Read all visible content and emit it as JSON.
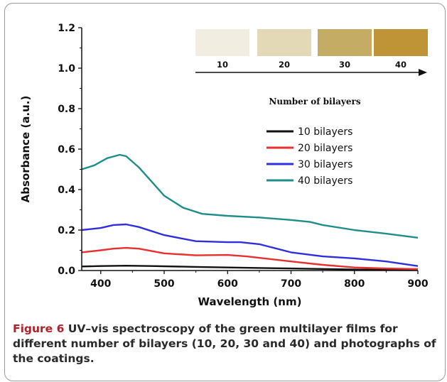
{
  "chart_data": {
    "type": "line",
    "xlabel": "Wavelength (nm)",
    "ylabel": "Absorbance (a.u.)",
    "xlim": [
      370,
      900
    ],
    "ylim": [
      0.0,
      1.2
    ],
    "x_ticks": [
      400,
      500,
      600,
      700,
      800,
      900
    ],
    "y_ticks": [
      0.0,
      0.2,
      0.4,
      0.6,
      0.8,
      1.0,
      1.2
    ],
    "y_tick_labels": [
      "0.0",
      "0.2",
      "0.4",
      "0.6",
      "0.8",
      "1.0",
      "1.2"
    ],
    "legend_position": "center-right",
    "series": [
      {
        "name": "10 bilayers",
        "color": "#111111",
        "x": [
          370,
          400,
          440,
          480,
          550,
          600,
          700,
          800,
          900
        ],
        "y": [
          0.02,
          0.022,
          0.024,
          0.022,
          0.018,
          0.015,
          0.01,
          0.005,
          0.003
        ]
      },
      {
        "name": "20 bilayers",
        "color": "#e8302e",
        "x": [
          370,
          400,
          420,
          440,
          460,
          500,
          550,
          600,
          630,
          700,
          750,
          800,
          850,
          900
        ],
        "y": [
          0.09,
          0.1,
          0.108,
          0.112,
          0.108,
          0.085,
          0.075,
          0.077,
          0.07,
          0.045,
          0.028,
          0.015,
          0.01,
          0.007
        ]
      },
      {
        "name": "30 bilayers",
        "color": "#2f2fde",
        "x": [
          370,
          400,
          420,
          440,
          460,
          500,
          550,
          600,
          620,
          650,
          700,
          750,
          800,
          850,
          900
        ],
        "y": [
          0.2,
          0.21,
          0.225,
          0.228,
          0.215,
          0.175,
          0.145,
          0.14,
          0.14,
          0.13,
          0.09,
          0.07,
          0.06,
          0.045,
          0.022
        ]
      },
      {
        "name": "40 bilayers",
        "color": "#1f8e8a",
        "x": [
          370,
          390,
          410,
          430,
          440,
          460,
          480,
          500,
          530,
          560,
          600,
          650,
          700,
          730,
          750,
          800,
          850,
          900
        ],
        "y": [
          0.5,
          0.52,
          0.555,
          0.572,
          0.565,
          0.51,
          0.44,
          0.37,
          0.31,
          0.28,
          0.27,
          0.262,
          0.25,
          0.24,
          0.225,
          0.2,
          0.182,
          0.162
        ]
      }
    ],
    "inset": {
      "swatch_colors": [
        "#f1ede1",
        "#e3d9b7",
        "#c4ac64",
        "#bf9437"
      ],
      "labels": [
        "10",
        "20",
        "30",
        "40"
      ],
      "axis_label": "Number of bilayers"
    }
  },
  "caption": {
    "figure_label": "Figure 6",
    "text": "UV–vis spectroscopy of the green multilayer films for different number of bilayers (10, 20, 30 and 40) and photographs of the coatings."
  }
}
